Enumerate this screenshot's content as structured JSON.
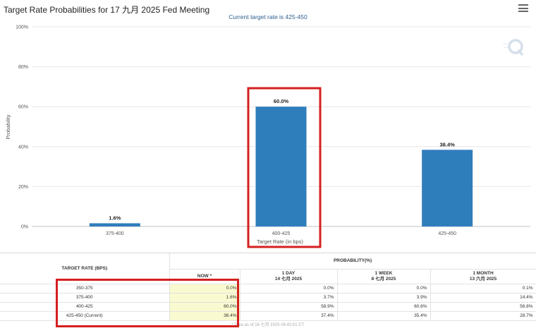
{
  "header": {
    "title": "Target Rate Probabilities for 17 九月 2025 Fed Meeting",
    "subtitle": "Current target rate is 425-450",
    "menu_icon": "hamburger-menu-icon"
  },
  "chart_data": {
    "type": "bar",
    "categories": [
      "375-400",
      "400-425",
      "425-450"
    ],
    "series": [
      {
        "values": [
          1.6,
          60.0,
          38.4
        ]
      }
    ],
    "data_labels": [
      "1.6%",
      "60.0%",
      "38.4%"
    ],
    "xlabel": "Target Rate (in bps)",
    "ylabel": "Probability",
    "ylim": [
      0,
      100
    ],
    "yticks": [
      0,
      20,
      40,
      60,
      80,
      100
    ],
    "ytick_labels": [
      "0%",
      "20%",
      "40%",
      "60%",
      "80%",
      "100%"
    ],
    "grid": true,
    "bar_color": "#2f7ebc",
    "highlight_box_color": "#d42020",
    "highlighted_category": "400-425"
  },
  "table": {
    "col_target": "TARGET RATE (BPS)",
    "col_prob": "PROBABILITY(%)",
    "sub_now": "NOW *",
    "sub_day": "1 DAY",
    "sub_day_date": "14 七月 2025",
    "sub_week": "1 WEEK",
    "sub_week_date": "8 七月 2025",
    "sub_month": "1 MONTH",
    "sub_month_date": "13 六月 2025",
    "rows": [
      {
        "rate": "350-375",
        "now": "0.0%",
        "day": "0.0%",
        "week": "0.0%",
        "month": "0.1%"
      },
      {
        "rate": "375-400",
        "now": "1.6%",
        "day": "3.7%",
        "week": "3.9%",
        "month": "14.4%"
      },
      {
        "rate": "400-425",
        "now": "60.0%",
        "day": "58.9%",
        "week": "60.6%",
        "month": "56.8%"
      },
      {
        "rate": "425-450 (Current)",
        "now": "38.4%",
        "day": "37.4%",
        "week": "35.4%",
        "month": "28.7%"
      }
    ],
    "footer": "* Data as of 16 七月 2025 08:42:01 CT",
    "now_highlight_color": "#fafad0"
  }
}
